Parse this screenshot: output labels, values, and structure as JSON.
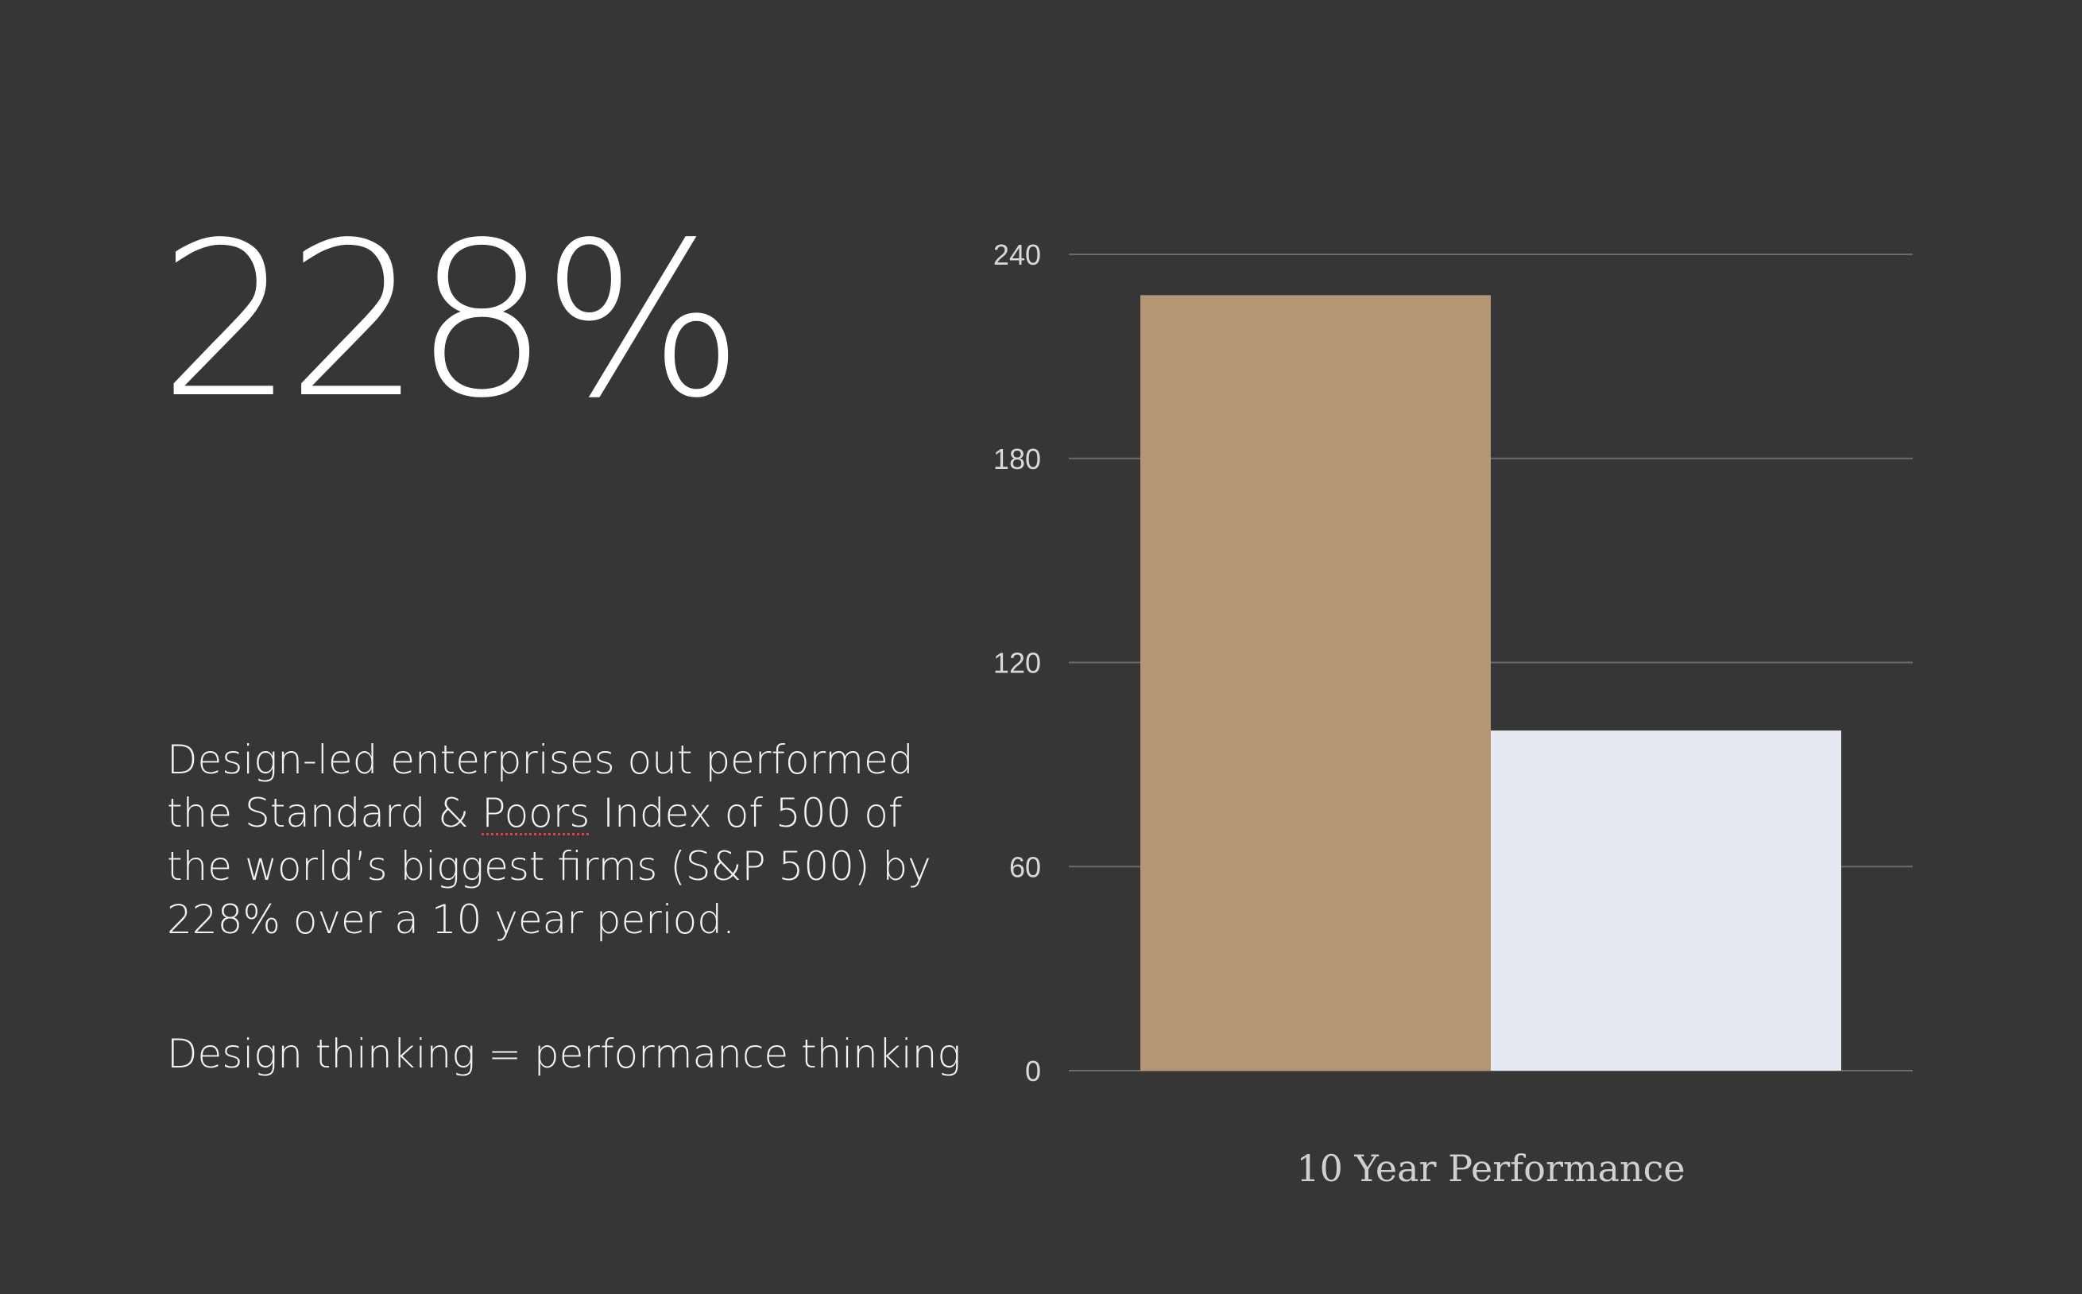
{
  "headline": {
    "stat": "228%"
  },
  "description": {
    "before_underline": "Design-led enterprises out performed the Standard & ",
    "underlined": "Poors",
    "after_underline": " Index of 500 of the world’s biggest firms (S&P 500) by 228% over a 10 year period."
  },
  "tagline": "Design thinking = performance thinking",
  "chart_data": {
    "type": "bar",
    "categories": [
      "",
      ""
    ],
    "values": [
      228,
      100
    ],
    "colors": [
      "#b59674",
      "#e6e9f2"
    ],
    "xlabel": "10 Year Performance",
    "ylabel": "",
    "ylim": [
      0,
      240
    ],
    "yticks": [
      0,
      60,
      120,
      180,
      240
    ],
    "ytick_labels": [
      "0",
      "60",
      "120",
      "180",
      "240"
    ],
    "grid": true,
    "grid_color": "#6a6a6a",
    "background": "#363636"
  }
}
